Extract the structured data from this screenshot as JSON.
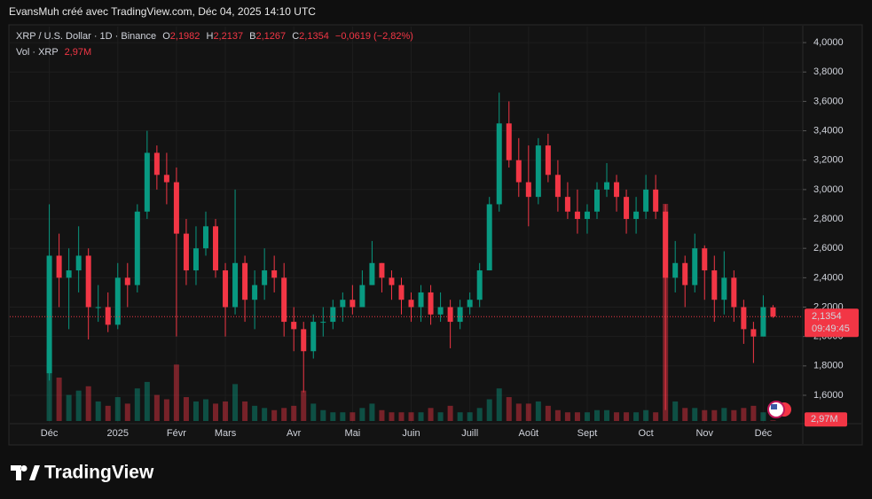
{
  "attribution": "EvansMuh créé avec TradingView.com, Déc 04, 2025 14:10 UTC",
  "legend": {
    "symbol": "XRP / U.S. Dollar · 1D · Binance",
    "o_key": "O",
    "o": "2,1982",
    "h_key": "H",
    "h": "2,2137",
    "b_key": "B",
    "b": "2,1267",
    "c_key": "C",
    "c": "2,1354",
    "change": "−0,0619 (−2,82%)",
    "vol_name": "Vol · XRP",
    "vol": "2,97M"
  },
  "chart_data": {
    "type": "candlestick",
    "categories": [
      "Déc",
      null,
      null,
      null,
      null,
      null,
      null,
      "2025",
      null,
      null,
      null,
      null,
      null,
      "Févr",
      null,
      null,
      null,
      null,
      "Mars",
      null,
      null,
      null,
      null,
      null,
      null,
      "Avr",
      null,
      null,
      null,
      null,
      null,
      "Mai",
      null,
      null,
      null,
      null,
      null,
      "Juin",
      null,
      null,
      null,
      null,
      null,
      "Juill",
      null,
      null,
      null,
      null,
      null,
      "Août",
      null,
      null,
      null,
      null,
      null,
      "Sept",
      null,
      null,
      null,
      null,
      null,
      "Oct",
      null,
      null,
      null,
      null,
      null,
      "Nov",
      null,
      null,
      null,
      null,
      null,
      "Déc",
      null
    ],
    "open": [
      1.75,
      2.55,
      2.4,
      2.45,
      2.55,
      2.2,
      2.2,
      2.08,
      2.4,
      2.35,
      2.85,
      3.25,
      3.1,
      3.05,
      2.7,
      2.45,
      2.6,
      2.75,
      2.45,
      2.2,
      2.5,
      2.25,
      2.35,
      2.45,
      2.4,
      2.1,
      2.05,
      1.9,
      2.1,
      2.1,
      2.2,
      2.25,
      2.2,
      2.35,
      2.5,
      2.4,
      2.35,
      2.25,
      2.2,
      2.3,
      2.15,
      2.2,
      2.1,
      2.2,
      2.25,
      2.45,
      2.9,
      3.45,
      3.2,
      3.05,
      2.95,
      3.3,
      3.1,
      2.95,
      2.85,
      2.8,
      2.85,
      3.0,
      3.05,
      2.95,
      2.8,
      2.85,
      3.0,
      2.85,
      2.4,
      2.5,
      2.35,
      2.6,
      2.45,
      2.25,
      2.4,
      2.2,
      2.05,
      2.0,
      2.1982
    ],
    "high": [
      2.9,
      2.7,
      2.6,
      2.75,
      2.6,
      2.35,
      2.3,
      2.5,
      2.5,
      2.9,
      3.4,
      3.3,
      3.25,
      3.15,
      2.8,
      2.75,
      2.85,
      2.8,
      2.5,
      3.0,
      2.55,
      2.45,
      2.6,
      2.55,
      2.5,
      2.2,
      2.1,
      2.15,
      2.2,
      2.25,
      2.3,
      2.35,
      2.45,
      2.65,
      2.5,
      2.45,
      2.4,
      2.3,
      2.35,
      2.35,
      2.3,
      2.25,
      2.25,
      2.3,
      2.5,
      2.95,
      3.66,
      3.6,
      3.35,
      3.3,
      3.35,
      3.38,
      3.2,
      3.05,
      3.0,
      2.9,
      3.05,
      3.18,
      3.1,
      3.0,
      2.95,
      3.1,
      3.1,
      2.9,
      2.65,
      2.55,
      2.7,
      2.62,
      2.55,
      2.58,
      2.45,
      2.25,
      2.1,
      2.28,
      2.2137
    ],
    "low": [
      1.7,
      2.2,
      2.05,
      2.3,
      1.98,
      2.1,
      2.03,
      2.05,
      2.2,
      2.3,
      2.8,
      3.0,
      2.9,
      2.0,
      2.35,
      2.35,
      2.55,
      2.4,
      2.0,
      2.15,
      2.1,
      2.05,
      2.25,
      2.3,
      2.0,
      1.9,
      1.62,
      1.85,
      2.0,
      2.05,
      2.1,
      2.15,
      2.2,
      2.35,
      2.3,
      2.25,
      2.15,
      2.1,
      2.1,
      2.08,
      2.1,
      1.92,
      2.05,
      2.15,
      2.2,
      2.45,
      2.85,
      3.15,
      2.95,
      2.75,
      2.9,
      3.05,
      2.85,
      2.8,
      2.7,
      2.7,
      2.8,
      2.95,
      2.85,
      2.7,
      2.7,
      2.8,
      2.8,
      1.5,
      2.3,
      2.2,
      2.3,
      2.25,
      2.1,
      2.15,
      2.1,
      1.95,
      1.82,
      2.0,
      2.1267
    ],
    "close": [
      2.55,
      2.4,
      2.45,
      2.55,
      2.2,
      2.2,
      2.08,
      2.4,
      2.35,
      2.85,
      3.25,
      3.1,
      3.05,
      2.7,
      2.45,
      2.6,
      2.75,
      2.45,
      2.2,
      2.5,
      2.25,
      2.35,
      2.45,
      2.4,
      2.1,
      2.05,
      1.9,
      2.1,
      2.1,
      2.2,
      2.25,
      2.2,
      2.35,
      2.5,
      2.4,
      2.35,
      2.25,
      2.2,
      2.3,
      2.15,
      2.2,
      2.1,
      2.2,
      2.25,
      2.45,
      2.9,
      3.45,
      3.2,
      3.05,
      2.95,
      3.3,
      3.1,
      2.95,
      2.85,
      2.8,
      2.85,
      3.0,
      3.05,
      2.95,
      2.8,
      2.85,
      3.0,
      2.85,
      2.4,
      2.5,
      2.35,
      2.6,
      2.45,
      2.25,
      2.4,
      2.2,
      2.05,
      2.0,
      2.2,
      2.1354
    ],
    "volume": [
      330,
      200,
      120,
      140,
      160,
      90,
      70,
      110,
      80,
      150,
      180,
      120,
      100,
      260,
      110,
      90,
      100,
      80,
      90,
      170,
      90,
      70,
      60,
      50,
      60,
      70,
      140,
      80,
      50,
      40,
      40,
      40,
      60,
      80,
      50,
      40,
      40,
      40,
      40,
      60,
      40,
      70,
      40,
      40,
      60,
      100,
      150,
      110,
      80,
      80,
      90,
      70,
      50,
      40,
      40,
      40,
      50,
      50,
      40,
      40,
      40,
      50,
      40,
      1000,
      90,
      60,
      60,
      50,
      50,
      60,
      50,
      60,
      70,
      40,
      2.97
    ],
    "vlim": [
      0,
      1000
    ],
    "up_color": "#089981",
    "down_color": "#f23645",
    "ylim": [
      1.425,
      4.109
    ],
    "yticks": [
      {
        "value": 1.6,
        "label": "1,6000"
      },
      {
        "value": 1.8,
        "label": "1,8000"
      },
      {
        "value": 2.0,
        "label": "2,0000"
      },
      {
        "value": 2.2,
        "label": "2,2000"
      },
      {
        "value": 2.4,
        "label": "2,4000"
      },
      {
        "value": 2.6,
        "label": "2,6000"
      },
      {
        "value": 2.8,
        "label": "2,8000"
      },
      {
        "value": 3.0,
        "label": "3,0000"
      },
      {
        "value": 3.2,
        "label": "3,2000"
      },
      {
        "value": 3.4,
        "label": "3,4000"
      },
      {
        "value": 3.6,
        "label": "3,6000"
      },
      {
        "value": 3.8,
        "label": "3,8000"
      },
      {
        "value": 4.0,
        "label": "4,0000"
      }
    ],
    "grid": true,
    "last_price_label": "2,1354",
    "countdown": "09:49:45",
    "volume_label": "2,97M"
  },
  "footer": {
    "brand": "TradingView"
  }
}
